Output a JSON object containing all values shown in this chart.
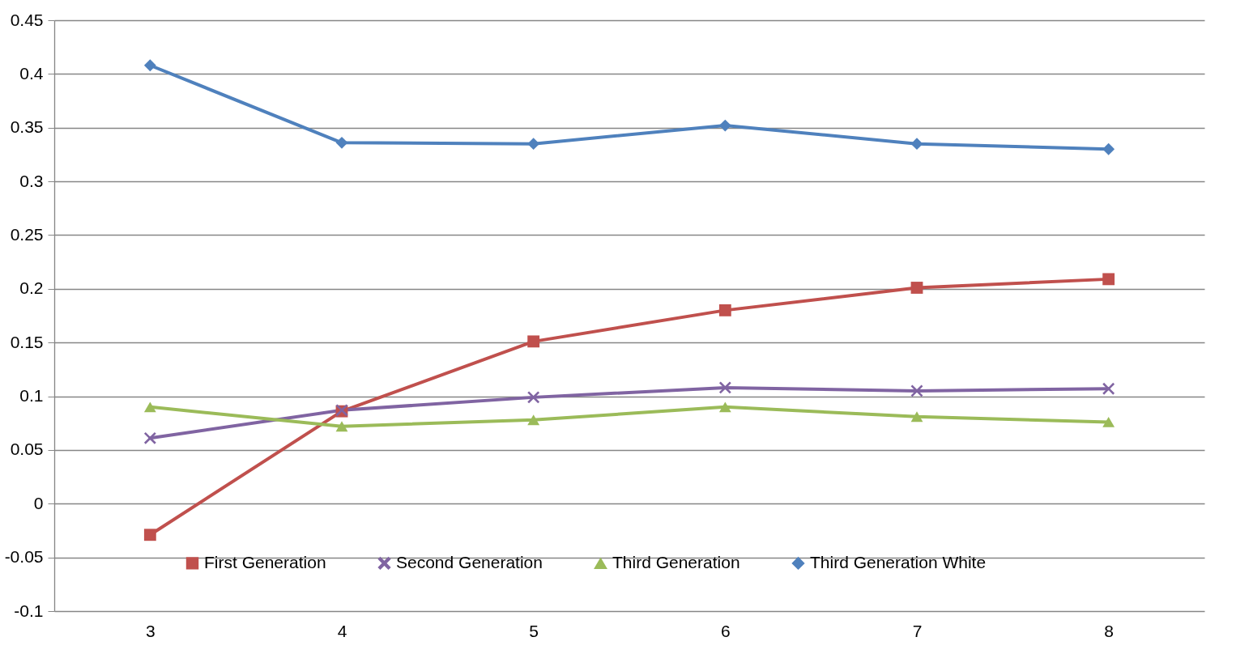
{
  "chart_data": {
    "type": "line",
    "categories": [
      "3",
      "4",
      "5",
      "6",
      "7",
      "8"
    ],
    "series": [
      {
        "name": "First Generation",
        "color": "#c0504d",
        "marker": "square",
        "values": [
          -0.029,
          0.086,
          0.151,
          0.18,
          0.201,
          0.209
        ]
      },
      {
        "name": "Second Generation",
        "color": "#8064a2",
        "marker": "cross",
        "values": [
          0.061,
          0.087,
          0.099,
          0.108,
          0.105,
          0.107
        ]
      },
      {
        "name": "Third Generation",
        "color": "#9bbb59",
        "marker": "triangle",
        "values": [
          0.09,
          0.072,
          0.078,
          0.09,
          0.081,
          0.076
        ]
      },
      {
        "name": "Third Generation White",
        "color": "#4f81bd",
        "marker": "diamond",
        "values": [
          0.408,
          0.336,
          0.335,
          0.352,
          0.335,
          0.33
        ]
      }
    ],
    "ylim": [
      -0.1,
      0.45
    ],
    "yticks": [
      -0.1,
      -0.05,
      0,
      0.05,
      0.1,
      0.15,
      0.2,
      0.25,
      0.3,
      0.35,
      0.4,
      0.45
    ],
    "grid": "y",
    "legend": "bottom",
    "line_style": "solid"
  }
}
